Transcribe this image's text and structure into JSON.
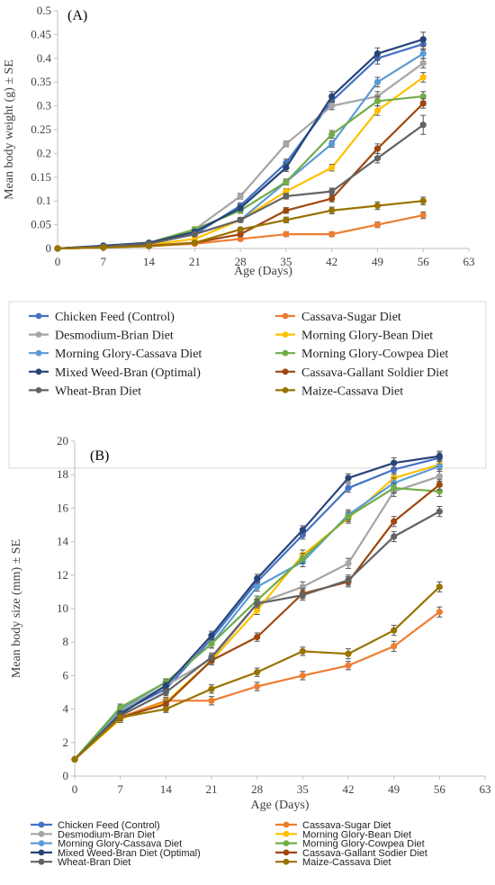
{
  "chart_data": [
    {
      "type": "line",
      "panel_label": "(A)",
      "xlabel": "Age (Days)",
      "ylabel": "Mean body weight (g) ± SE",
      "x": [
        0,
        7,
        14,
        21,
        28,
        35,
        42,
        49,
        56
      ],
      "xticks": [
        0,
        7,
        14,
        21,
        28,
        35,
        42,
        49,
        56,
        63
      ],
      "xlim": [
        0,
        63
      ],
      "ylim": [
        0,
        0.5
      ],
      "yticks": [
        0,
        0.05,
        0.1,
        0.15,
        0.2,
        0.25,
        0.3,
        0.35,
        0.4,
        0.45,
        0.5
      ],
      "legend_position": "bottom",
      "error_bars": true,
      "series": [
        {
          "name": "Chicken Feed (Control)",
          "color": "#4472C4",
          "values": [
            0,
            0.005,
            0.01,
            0.03,
            0.09,
            0.18,
            0.31,
            0.4,
            0.43
          ],
          "se": [
            0.002,
            0.002,
            0.003,
            0.005,
            0.006,
            0.008,
            0.01,
            0.012,
            0.012
          ]
        },
        {
          "name": "Cassava-Sugar Diet",
          "color": "#ED7D31",
          "values": [
            0,
            0.002,
            0.005,
            0.01,
            0.02,
            0.03,
            0.03,
            0.05,
            0.07
          ],
          "se": [
            0.001,
            0.001,
            0.002,
            0.003,
            0.004,
            0.005,
            0.005,
            0.006,
            0.007
          ]
        },
        {
          "name": "Desmodium-Brian Diet",
          "color": "#A5A5A5",
          "values": [
            0,
            0.005,
            0.012,
            0.04,
            0.11,
            0.22,
            0.3,
            0.32,
            0.39
          ],
          "se": [
            0.002,
            0.002,
            0.003,
            0.005,
            0.006,
            0.006,
            0.008,
            0.01,
            0.01
          ]
        },
        {
          "name": "Morning Glory-Bean Diet",
          "color": "#FFC000",
          "values": [
            0,
            0.003,
            0.008,
            0.02,
            0.06,
            0.12,
            0.17,
            0.29,
            0.36
          ],
          "se": [
            0.001,
            0.002,
            0.003,
            0.004,
            0.005,
            0.006,
            0.007,
            0.01,
            0.01
          ]
        },
        {
          "name": "Morning Glory-Cassava Diet",
          "color": "#5B9BD5",
          "values": [
            0,
            0.004,
            0.01,
            0.03,
            0.06,
            0.14,
            0.22,
            0.35,
            0.41
          ],
          "se": [
            0.001,
            0.002,
            0.003,
            0.004,
            0.005,
            0.006,
            0.007,
            0.01,
            0.01
          ]
        },
        {
          "name": "Morning Glory-Cowpea Diet",
          "color": "#70AD47",
          "values": [
            0,
            0.005,
            0.012,
            0.04,
            0.08,
            0.14,
            0.24,
            0.31,
            0.32
          ],
          "se": [
            0.002,
            0.002,
            0.003,
            0.005,
            0.006,
            0.006,
            0.008,
            0.01,
            0.01
          ]
        },
        {
          "name": "Mixed Weed-Bran (Optimal)",
          "color": "#264478",
          "values": [
            0,
            0.006,
            0.012,
            0.035,
            0.085,
            0.17,
            0.32,
            0.41,
            0.44
          ],
          "se": [
            0.002,
            0.002,
            0.003,
            0.005,
            0.006,
            0.008,
            0.01,
            0.012,
            0.015
          ]
        },
        {
          "name": "Cassava-Gallant Soldier Diet",
          "color": "#9E480E",
          "values": [
            0,
            0.002,
            0.006,
            0.012,
            0.03,
            0.08,
            0.105,
            0.21,
            0.305
          ],
          "se": [
            0.001,
            0.001,
            0.002,
            0.003,
            0.004,
            0.006,
            0.007,
            0.01,
            0.01
          ]
        },
        {
          "name": "Wheat-Bran Diet",
          "color": "#636363",
          "values": [
            0,
            0.004,
            0.01,
            0.03,
            0.06,
            0.11,
            0.12,
            0.19,
            0.26
          ],
          "se": [
            0.001,
            0.002,
            0.003,
            0.004,
            0.005,
            0.006,
            0.007,
            0.01,
            0.02
          ]
        },
        {
          "name": "Maize-Cassava Diet",
          "color": "#997300",
          "values": [
            0,
            0.002,
            0.005,
            0.012,
            0.04,
            0.06,
            0.08,
            0.09,
            0.1
          ],
          "se": [
            0.001,
            0.001,
            0.002,
            0.003,
            0.004,
            0.006,
            0.007,
            0.008,
            0.008
          ]
        }
      ]
    },
    {
      "type": "line",
      "panel_label": "(B)",
      "xlabel": "Age (Days)",
      "ylabel": "Mean body size (mm) ± SE",
      "x": [
        0,
        7,
        14,
        21,
        28,
        35,
        42,
        49,
        56
      ],
      "xticks": [
        0,
        7,
        14,
        21,
        28,
        35,
        42,
        49,
        56,
        63
      ],
      "xlim": [
        0,
        63
      ],
      "ylim": [
        0,
        20
      ],
      "yticks": [
        0,
        2,
        4,
        6,
        8,
        10,
        12,
        14,
        16,
        18,
        20
      ],
      "legend_position": "bottom",
      "error_bars": true,
      "series": [
        {
          "name": "Chicken Feed (Control)",
          "color": "#4472C4",
          "values": [
            1,
            3.8,
            5.2,
            8.2,
            11.6,
            14.4,
            17.2,
            18.3,
            19.0
          ],
          "se": [
            0.1,
            0.2,
            0.2,
            0.25,
            0.25,
            0.25,
            0.25,
            0.3,
            0.3
          ]
        },
        {
          "name": "Cassava-Sugar Diet",
          "color": "#ED7D31",
          "values": [
            1,
            3.5,
            4.5,
            4.5,
            5.35,
            6.0,
            6.6,
            7.75,
            9.8
          ],
          "se": [
            0.1,
            0.2,
            0.2,
            0.25,
            0.25,
            0.25,
            0.25,
            0.3,
            0.3
          ]
        },
        {
          "name": "Desmodium-Bran Diet",
          "color": "#A5A5A5",
          "values": [
            1,
            3.9,
            5.4,
            7.0,
            10.3,
            11.3,
            12.7,
            17.0,
            17.9
          ],
          "se": [
            0.1,
            0.2,
            0.2,
            0.25,
            0.25,
            0.3,
            0.3,
            0.3,
            0.3
          ]
        },
        {
          "name": "Morning Glory-Bean Diet",
          "color": "#FFC000",
          "values": [
            1,
            3.4,
            4.4,
            6.9,
            9.9,
            13.2,
            15.4,
            17.8,
            18.6
          ],
          "se": [
            0.1,
            0.2,
            0.2,
            0.25,
            0.25,
            0.3,
            0.3,
            0.3,
            0.3
          ]
        },
        {
          "name": "Morning Glory-Cassava Diet",
          "color": "#5B9BD5",
          "values": [
            1,
            4.0,
            5.6,
            7.9,
            11.3,
            12.8,
            15.6,
            17.5,
            18.5
          ],
          "se": [
            0.1,
            0.2,
            0.2,
            0.25,
            0.25,
            0.3,
            0.3,
            0.3,
            0.3
          ]
        },
        {
          "name": "Morning Glory-Cowpea Diet",
          "color": "#70AD47",
          "values": [
            1,
            4.1,
            5.6,
            7.9,
            10.5,
            13.0,
            15.5,
            17.2,
            17.0
          ],
          "se": [
            0.1,
            0.2,
            0.2,
            0.25,
            0.25,
            0.3,
            0.3,
            0.3,
            0.3
          ]
        },
        {
          "name": "Mixed Weed-Bran Diet (Optimal)",
          "color": "#264478",
          "values": [
            1,
            3.7,
            5.4,
            8.4,
            11.8,
            14.7,
            17.8,
            18.7,
            19.1
          ],
          "se": [
            0.1,
            0.2,
            0.2,
            0.25,
            0.25,
            0.25,
            0.25,
            0.3,
            0.3
          ]
        },
        {
          "name": "Cassava-Gallant Sodier Diet",
          "color": "#9E480E",
          "values": [
            1,
            3.5,
            4.3,
            6.9,
            8.3,
            10.9,
            11.6,
            15.2,
            17.4
          ],
          "se": [
            0.1,
            0.2,
            0.2,
            0.25,
            0.25,
            0.3,
            0.3,
            0.3,
            0.3
          ]
        },
        {
          "name": "Wheat-Bran Diet",
          "color": "#636363",
          "values": [
            1,
            3.6,
            5.0,
            7.1,
            10.3,
            10.8,
            11.7,
            14.3,
            15.8
          ],
          "se": [
            0.1,
            0.2,
            0.2,
            0.25,
            0.25,
            0.3,
            0.3,
            0.3,
            0.3
          ]
        },
        {
          "name": "Maize-Cassava Diet",
          "color": "#997300",
          "values": [
            1,
            3.5,
            4.0,
            5.2,
            6.2,
            7.45,
            7.3,
            8.7,
            11.3
          ],
          "se": [
            0.1,
            0.2,
            0.2,
            0.25,
            0.25,
            0.25,
            0.3,
            0.3,
            0.3
          ]
        }
      ]
    }
  ]
}
